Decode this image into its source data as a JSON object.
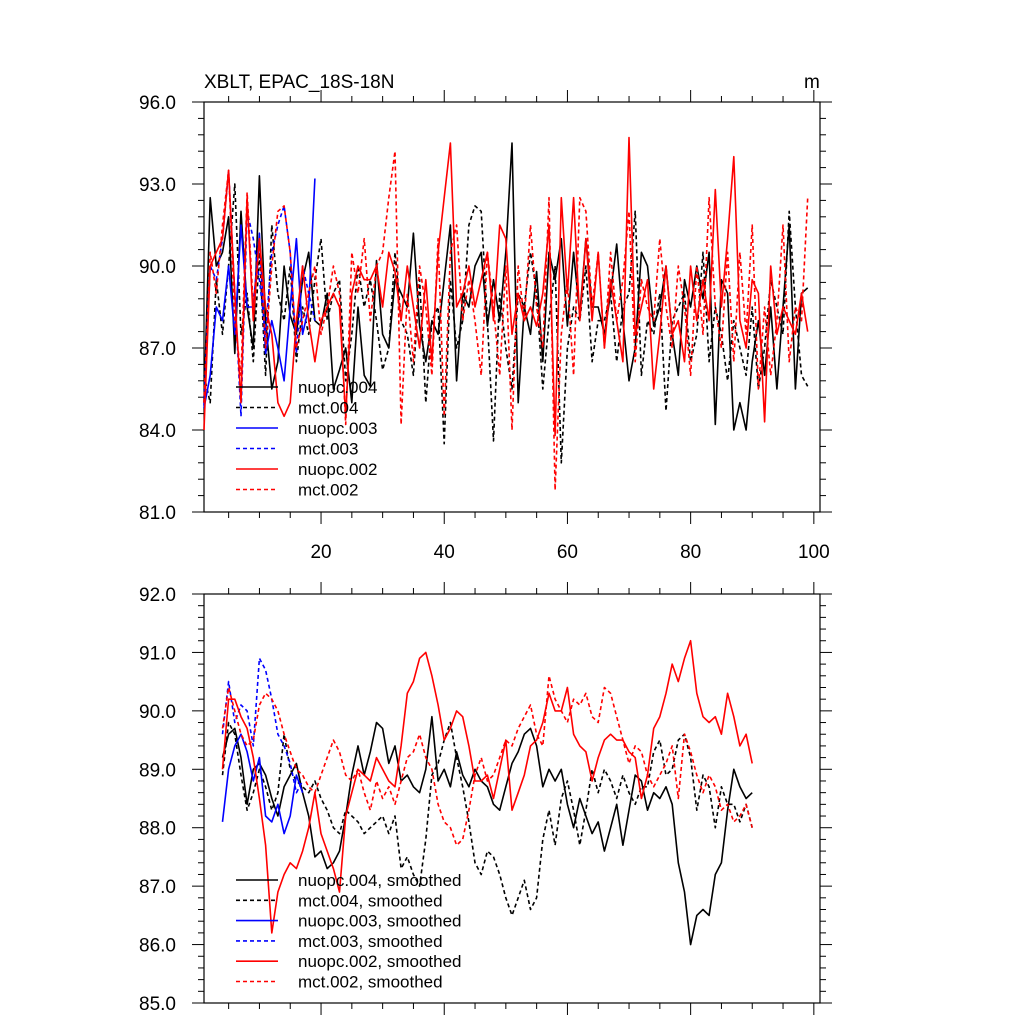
{
  "chart_data": [
    {
      "type": "line",
      "title": "XBLT, EPAC_18S-18N",
      "units": "m",
      "xlim": [
        1,
        101
      ],
      "ylim": [
        81.0,
        96.0
      ],
      "xticks": [
        20,
        40,
        60,
        80,
        100
      ],
      "yticks": [
        81.0,
        84.0,
        87.0,
        90.0,
        93.0,
        96.0
      ],
      "ytick_labels": [
        "81.0",
        "84.0",
        "87.0",
        "90.0",
        "93.0",
        "96.0"
      ],
      "xtick_labels": [
        "20",
        "40",
        "60",
        "80",
        "100"
      ],
      "legend_position": "lower-left",
      "series": [
        {
          "name": "nuopc.004",
          "color": "#000000",
          "dash": "solid",
          "x_start": 1,
          "values": [
            85.0,
            92.5,
            90.0,
            90.5,
            91.8,
            86.8,
            92.0,
            88.5,
            87.0,
            93.3,
            88.0,
            85.5,
            86.5,
            90.0,
            88.2,
            87.5,
            89.5,
            90.5,
            88.0,
            87.8,
            89.0,
            85.5,
            86.2,
            87.0,
            85.0,
            88.5,
            86.0,
            85.6,
            90.2,
            87.5,
            87.0,
            89.5,
            89.0,
            88.5,
            91.2,
            87.8,
            86.5,
            88.0,
            87.5,
            89.5,
            91.5,
            85.8,
            89.0,
            88.5,
            90.0,
            90.5,
            87.8,
            89.5,
            88.0,
            90.5,
            94.5,
            85.0,
            88.5,
            87.5,
            89.8,
            86.5,
            90.5,
            89.5,
            91.0,
            87.8,
            90.5,
            88.2,
            91.0,
            88.5,
            88.5,
            87.5,
            89.0,
            90.8,
            88.0,
            85.8,
            87.0,
            90.5,
            90.0,
            87.8,
            88.5,
            90.0,
            87.5,
            86.0,
            89.5,
            88.5,
            90.0,
            88.8,
            90.5,
            84.2,
            89.5,
            89.0,
            84.0,
            85.0,
            84.0,
            86.5,
            88.0,
            86.0,
            88.5,
            85.5,
            88.5,
            91.5,
            85.5,
            89.0,
            89.2
          ]
        },
        {
          "name": "mct.004",
          "color": "#000000",
          "dash": "dashed",
          "x_start": 1,
          "values": [
            86.0,
            85.0,
            89.5,
            87.5,
            90.0,
            93.0,
            87.5,
            89.0,
            86.5,
            90.5,
            86.0,
            91.5,
            89.0,
            88.0,
            90.0,
            86.5,
            88.5,
            87.5,
            89.5,
            91.0,
            88.0,
            89.0,
            89.5,
            85.8,
            87.5,
            90.0,
            88.5,
            89.5,
            88.0,
            86.2,
            87.0,
            90.5,
            88.0,
            87.5,
            86.0,
            89.5,
            85.0,
            88.0,
            88.5,
            83.5,
            89.5,
            87.0,
            88.0,
            91.5,
            92.2,
            92.0,
            88.0,
            83.6,
            89.0,
            87.0,
            85.5,
            89.0,
            88.5,
            90.5,
            89.0,
            85.5,
            88.0,
            90.0,
            82.8,
            87.0,
            88.5,
            88.0,
            90.0,
            86.5,
            88.0,
            88.0,
            89.0,
            86.5,
            88.5,
            89.0,
            92.0,
            86.0,
            88.0,
            87.5,
            89.0,
            84.7,
            88.0,
            88.5,
            89.0,
            86.5,
            87.5,
            90.5,
            86.5,
            88.5,
            87.5,
            85.8,
            88.0,
            87.0,
            86.0,
            88.5,
            85.5,
            87.0,
            89.5,
            88.5,
            87.5,
            92.0,
            88.5,
            86.0,
            85.6
          ]
        },
        {
          "name": "nuopc.003",
          "color": "#0000ff",
          "dash": "solid",
          "x_start": 1,
          "values": [
            84.8,
            86.0,
            88.5,
            88.0,
            90.0,
            87.5,
            91.5,
            88.5,
            88.5,
            91.2,
            86.8,
            88.0,
            87.0,
            85.8,
            88.5,
            91.0,
            87.5,
            88.5,
            93.2
          ]
        },
        {
          "name": "mct.003",
          "color": "#0000ff",
          "dash": "dashed",
          "x_start": 1,
          "values": [
            84.9,
            90.0,
            89.5,
            91.0,
            93.5,
            89.0,
            84.5,
            92.0,
            91.0,
            89.5,
            87.5,
            90.5,
            91.5,
            92.2,
            90.5,
            86.8,
            90.0,
            89.0,
            88.0
          ]
        },
        {
          "name": "nuopc.002",
          "color": "#ff0000",
          "dash": "solid",
          "x_start": 1,
          "values": [
            84.0,
            90.0,
            90.5,
            91.0,
            93.5,
            89.0,
            85.0,
            92.5,
            88.0,
            91.0,
            88.5,
            87.5,
            85.0,
            84.5,
            85.0,
            88.0,
            90.0,
            88.0,
            86.5,
            88.0,
            88.5,
            89.0,
            88.5,
            84.5,
            89.0,
            90.0,
            89.5,
            89.5,
            90.0,
            88.5,
            90.5,
            89.8,
            88.0,
            90.0,
            88.5,
            87.0,
            89.5,
            86.5,
            90.5,
            92.5,
            94.5,
            88.5,
            89.0,
            90.0,
            88.5,
            89.5,
            90.5,
            88.0,
            91.5,
            91.0,
            87.5,
            89.0,
            88.0,
            88.5,
            87.8,
            89.0,
            91.5,
            83.8,
            92.5,
            89.0,
            92.5,
            88.0,
            91.0,
            88.0,
            90.5,
            87.0,
            89.5,
            88.0,
            86.5,
            94.7,
            87.5,
            88.5,
            89.5,
            85.5,
            87.5,
            90.0,
            87.5,
            88.0,
            86.5,
            90.0,
            88.0,
            89.5,
            88.0,
            92.8,
            88.5,
            91.0,
            94.0,
            88.0,
            87.0,
            89.5,
            89.0,
            84.3,
            90.0,
            87.5,
            88.5,
            88.0,
            87.5,
            89.0,
            87.6
          ]
        },
        {
          "name": "mct.002",
          "color": "#ff0000",
          "dash": "dashed",
          "x_start": 1,
          "values": [
            85.0,
            90.5,
            89.0,
            91.5,
            93.5,
            88.0,
            86.0,
            92.7,
            88.5,
            91.0,
            87.0,
            90.0,
            92.0,
            92.2,
            90.5,
            87.0,
            88.0,
            89.0,
            90.0,
            87.5,
            88.5,
            90.0,
            89.0,
            84.2,
            90.5,
            89.0,
            91.0,
            88.0,
            90.0,
            90.5,
            92.5,
            94.2,
            84.2,
            89.0,
            86.5,
            90.0,
            88.5,
            86.0,
            91.0,
            84.5,
            90.5,
            91.5,
            88.0,
            89.5,
            88.0,
            86.0,
            90.5,
            88.5,
            86.0,
            90.0,
            84.0,
            90.0,
            88.0,
            91.5,
            88.5,
            87.0,
            92.5,
            81.8,
            87.5,
            89.5,
            86.0,
            92.5,
            92.0,
            88.5,
            90.5,
            87.0,
            90.5,
            88.0,
            89.5,
            92.0,
            86.5,
            89.5,
            88.5,
            88.0,
            91.0,
            88.5,
            87.0,
            90.0,
            88.5,
            86.0,
            90.0,
            87.5,
            92.5,
            88.5,
            87.0,
            90.5,
            86.5,
            90.5,
            87.5,
            91.5,
            85.5,
            88.5,
            86.0,
            88.0,
            91.5,
            86.5,
            88.5,
            88.0,
            92.5
          ]
        }
      ]
    },
    {
      "type": "line",
      "title": "",
      "xlim": [
        1,
        101
      ],
      "ylim": [
        85.0,
        92.0
      ],
      "xticks": [
        20,
        40,
        60,
        80,
        100
      ],
      "yticks": [
        85.0,
        86.0,
        87.0,
        88.0,
        89.0,
        90.0,
        91.0,
        92.0
      ],
      "ytick_labels": [
        "85.0",
        "86.0",
        "87.0",
        "88.0",
        "89.0",
        "90.0",
        "91.0",
        "92.0"
      ],
      "legend_position": "lower-left",
      "series": [
        {
          "name": "nuopc.004, smoothed",
          "color": "#000000",
          "dash": "solid",
          "x_start": 4,
          "values": [
            89.2,
            89.6,
            89.7,
            89.2,
            88.4,
            89.0,
            89.1,
            88.9,
            88.5,
            88.2,
            88.7,
            88.9,
            89.1,
            88.6,
            88.2,
            87.5,
            87.6,
            87.3,
            87.4,
            87.6,
            88.2,
            88.9,
            89.4,
            88.9,
            89.3,
            89.8,
            89.7,
            89.1,
            89.4,
            88.8,
            88.9,
            88.7,
            88.6,
            89.0,
            89.9,
            88.8,
            89.0,
            88.7,
            89.3,
            88.9,
            88.7,
            89.0,
            88.8,
            88.7,
            88.4,
            88.3,
            88.7,
            89.1,
            89.3,
            89.6,
            89.7,
            89.4,
            88.7,
            89.0,
            88.8,
            89.0,
            88.4,
            88.0,
            88.5,
            88.2,
            87.9,
            88.1,
            87.6,
            88.0,
            88.4,
            87.7,
            88.3,
            88.9,
            88.8,
            88.3,
            88.6,
            88.5,
            88.7,
            88.4,
            87.4,
            86.9,
            86.0,
            86.5,
            86.6,
            86.5,
            87.2,
            87.4,
            88.3,
            89.0,
            88.7,
            88.5,
            88.6
          ]
        },
        {
          "name": "mct.004, smoothed",
          "color": "#000000",
          "dash": "dashed",
          "x_start": 4,
          "values": [
            88.9,
            89.8,
            89.6,
            88.9,
            88.3,
            88.6,
            89.0,
            88.7,
            88.3,
            88.6,
            89.6,
            89.0,
            88.8,
            88.7,
            88.6,
            88.8,
            88.5,
            88.3,
            88.0,
            87.9,
            88.3,
            88.2,
            88.1,
            87.9,
            88.0,
            88.1,
            88.2,
            87.9,
            88.2,
            87.3,
            87.5,
            87.2,
            87.0,
            87.8,
            88.9,
            89.1,
            89.5,
            89.8,
            89.2,
            88.7,
            88.1,
            87.4,
            87.2,
            87.6,
            87.5,
            87.2,
            86.8,
            86.5,
            86.8,
            87.1,
            86.6,
            86.8,
            87.8,
            88.3,
            87.7,
            88.5,
            88.8,
            88.3,
            87.7,
            88.3,
            89.0,
            88.6,
            89.0,
            88.8,
            88.5,
            88.9,
            88.6,
            88.4,
            88.7,
            88.7,
            89.3,
            89.5,
            88.9,
            89.0,
            89.5,
            89.6,
            89.2,
            88.3,
            88.9,
            88.7,
            88.0,
            88.7,
            88.4,
            88.4,
            88.1,
            88.4,
            88.0
          ]
        },
        {
          "name": "nuopc.003, smoothed",
          "color": "#0000ff",
          "dash": "solid",
          "x_start": 4,
          "values": [
            88.1,
            89.0,
            89.4,
            89.6,
            89.3,
            88.8,
            89.2,
            88.2,
            88.1,
            88.4,
            87.9,
            88.2,
            88.9,
            88.6
          ]
        },
        {
          "name": "mct.003, smoothed",
          "color": "#0000ff",
          "dash": "dashed",
          "x_start": 4,
          "values": [
            89.6,
            90.5,
            89.8,
            90.1,
            90.0,
            89.4,
            90.9,
            90.7,
            90.2,
            89.6,
            89.4,
            89.1,
            88.6,
            88.8
          ]
        },
        {
          "name": "nuopc.002, smoothed",
          "color": "#ff0000",
          "dash": "solid",
          "x_start": 4,
          "values": [
            89.0,
            90.2,
            90.2,
            89.9,
            89.7,
            89.2,
            88.5,
            87.7,
            86.2,
            86.9,
            87.2,
            87.4,
            87.3,
            87.6,
            88.0,
            88.6,
            87.9,
            87.6,
            87.3,
            86.9,
            88.2,
            88.6,
            89.0,
            88.9,
            88.8,
            89.2,
            89.0,
            88.8,
            88.7,
            89.4,
            90.3,
            90.5,
            90.9,
            91.0,
            90.6,
            90.1,
            89.5,
            89.7,
            90.0,
            89.9,
            89.4,
            88.8,
            88.8,
            88.9,
            88.5,
            89.0,
            89.5,
            88.3,
            88.6,
            88.9,
            89.4,
            89.5,
            89.8,
            90.3,
            90.0,
            90.0,
            90.4,
            89.6,
            89.4,
            89.3,
            88.8,
            89.2,
            89.5,
            89.6,
            89.5,
            89.5,
            89.3,
            89.2,
            88.5,
            88.9,
            89.7,
            89.9,
            90.3,
            90.8,
            90.5,
            90.9,
            91.2,
            90.3,
            89.9,
            89.8,
            89.9,
            89.6,
            90.3,
            89.9,
            89.4,
            89.6,
            89.1
          ]
        },
        {
          "name": "mct.002, smoothed",
          "color": "#ff0000",
          "dash": "dashed",
          "x_start": 4,
          "values": [
            89.7,
            90.4,
            90.0,
            89.6,
            89.4,
            89.5,
            90.1,
            90.3,
            90.2,
            90.0,
            89.6,
            89.3,
            89.0,
            88.9,
            88.7,
            88.6,
            88.9,
            89.2,
            89.5,
            89.3,
            88.9,
            88.8,
            89.0,
            88.6,
            88.3,
            88.8,
            88.5,
            88.7,
            88.4,
            88.8,
            89.2,
            89.3,
            89.6,
            89.2,
            89.0,
            88.4,
            88.1,
            88.0,
            87.7,
            87.8,
            88.3,
            88.9,
            89.2,
            88.8,
            88.9,
            89.2,
            89.5,
            89.4,
            89.7,
            89.9,
            90.1,
            89.6,
            89.4,
            90.6,
            90.2,
            90.0,
            89.8,
            90.2,
            90.1,
            90.3,
            89.9,
            89.8,
            90.4,
            90.3,
            89.9,
            89.5,
            89.1,
            89.4,
            89.3,
            88.9,
            88.7,
            88.9,
            89.1,
            89.4,
            88.5,
            89.6,
            89.3,
            88.9,
            88.6,
            88.9,
            88.7,
            88.3,
            88.4,
            88.1,
            88.2,
            88.4,
            88.0
          ]
        }
      ]
    }
  ]
}
